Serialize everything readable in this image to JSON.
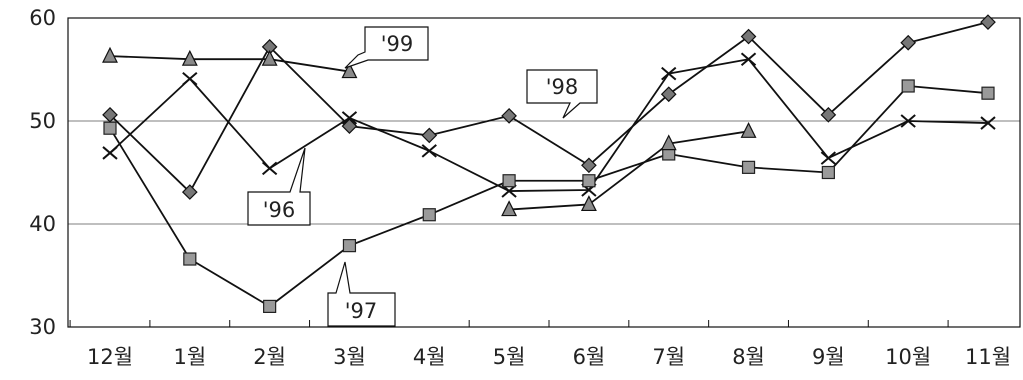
{
  "chart_data": {
    "type": "line",
    "title": "",
    "xlabel": "",
    "ylabel": "",
    "categories": [
      "12월",
      "1월",
      "2월",
      "3월",
      "4월",
      "5월",
      "6월",
      "7월",
      "8월",
      "9월",
      "10월",
      "11월"
    ],
    "ylim": [
      30,
      60
    ],
    "yticks": [
      30,
      40,
      50,
      60
    ],
    "grid": "horizontal",
    "legend": "none",
    "series": [
      {
        "name": "'96",
        "marker": "x",
        "color": "#111111",
        "values": [
          46.9,
          54.1,
          45.4,
          50.3,
          47.1,
          43.2,
          43.3,
          54.6,
          56.0,
          46.4,
          50.0,
          49.8
        ]
      },
      {
        "name": "'97",
        "marker": "square",
        "color": "#111111",
        "values": [
          49.3,
          36.6,
          32.0,
          37.9,
          40.9,
          44.2,
          44.2,
          46.8,
          45.5,
          45.0,
          53.4,
          52.7
        ]
      },
      {
        "name": "'98",
        "marker": "diamond",
        "color": "#111111",
        "values": [
          50.6,
          43.1,
          57.2,
          49.5,
          48.6,
          50.5,
          45.7,
          52.6,
          58.2,
          50.6,
          57.6,
          59.6
        ]
      },
      {
        "name": "'99",
        "marker": "triangle",
        "color": "#111111",
        "values": [
          56.3,
          56.0,
          56.0,
          54.8,
          null,
          41.4,
          41.9,
          47.8,
          49.0,
          null,
          null,
          null
        ]
      }
    ]
  }
}
